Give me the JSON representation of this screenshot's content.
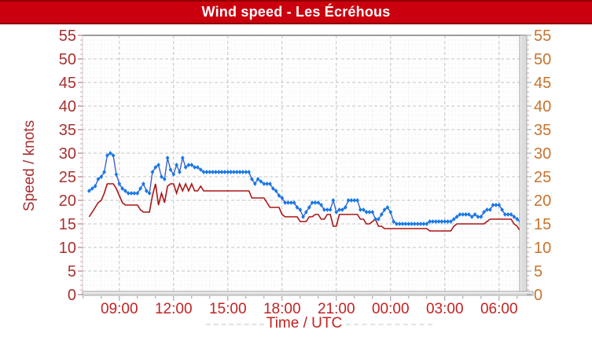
{
  "colors": {
    "title_bar_bg": "#cb000e",
    "title_bar_border": "#8e0000",
    "title_text": "#ffffff",
    "left_axis_text": "#a83030",
    "right_axis_text": "#c8732d",
    "x_axis_text": "#c22222",
    "grid_major": "#c3c3c3",
    "grid_minor": "#eeeeee",
    "grid_hour": "#e3e3e3",
    "axis_bar_fill": "#dcdcdc",
    "axis_bar_edge": "#a8a8a8",
    "tick_color": "#999999",
    "left_tick_minor": "#d8a0a0",
    "left_tick_major": "#b06060",
    "right_tick_minor": "#cc9999"
  },
  "chart_data": {
    "type": "line",
    "title": "Wind speed - Les Écréhous",
    "xlabel": "Time / UTC",
    "ylabel": "Speed / knots",
    "ylim": [
      0,
      55
    ],
    "y_tick_step": 5,
    "x_tick_labels": [
      "09:00",
      "12:00",
      "15:00",
      "18:00",
      "21:00",
      "00:00",
      "03:00",
      "06:00"
    ],
    "x_tick_hours": [
      9,
      12,
      15,
      18,
      21,
      24,
      27,
      30
    ],
    "x_start_time": "07:20",
    "x_interval_minutes": 10,
    "grid": true,
    "legend": "none",
    "series": [
      {
        "name": "series-blue-diamonds",
        "color": "#1778e8",
        "line_color": "#3d62c6",
        "marker": "diamond",
        "values": [
          22,
          22.5,
          23,
          24.5,
          25,
          26,
          29.5,
          30,
          29.5,
          25.5,
          23.5,
          22.5,
          22,
          21.5,
          21.5,
          21.5,
          21.5,
          22.5,
          23.5,
          22,
          21.5,
          26,
          27,
          27.5,
          25,
          24.5,
          29,
          26.5,
          25.5,
          27.5,
          26,
          29,
          27,
          27.5,
          27.5,
          27,
          27,
          26.5,
          26,
          26,
          26,
          26,
          26,
          26,
          26,
          26,
          26,
          26,
          26,
          26,
          26,
          26,
          26,
          26,
          24.5,
          23.5,
          24.5,
          24,
          23.5,
          23.5,
          23.5,
          22.5,
          22,
          21,
          20.5,
          19.5,
          19.5,
          19.5,
          19.5,
          18.5,
          18,
          16.5,
          17.5,
          18.5,
          19.5,
          19.5,
          19.5,
          19,
          18,
          18,
          18,
          20,
          17.5,
          18,
          18,
          18.5,
          20,
          20,
          20,
          20,
          18,
          18,
          17.5,
          17.5,
          17.5,
          16,
          16,
          17,
          18,
          18.5,
          17.5,
          15.5,
          15,
          15,
          15,
          15,
          15,
          15,
          15,
          15,
          15,
          15,
          15,
          15.5,
          15.5,
          15.5,
          15.5,
          15.5,
          15.5,
          15.5,
          15.5,
          16,
          16.5,
          17,
          17,
          17,
          17,
          16.5,
          17,
          16.5,
          16.5,
          17.5,
          18,
          18,
          19,
          19,
          19,
          18,
          17,
          17,
          17,
          16.5,
          16,
          15.5,
          14.5
        ]
      },
      {
        "name": "series-red-line",
        "color": "#aa1414",
        "line_color": "#aa1414",
        "marker": "none",
        "values": [
          16.5,
          17.5,
          18.5,
          19.5,
          20,
          21.5,
          23.5,
          23.5,
          23.5,
          22.5,
          21,
          19.5,
          19,
          19,
          19,
          19,
          19,
          18,
          17.5,
          17.5,
          17.5,
          21,
          23.5,
          19,
          21.5,
          19.5,
          23,
          23.5,
          23.5,
          21.5,
          23.5,
          22,
          23.5,
          22,
          23.5,
          22,
          22,
          23,
          22,
          22,
          22,
          22,
          22,
          22,
          22,
          22,
          22,
          22,
          22,
          22,
          22,
          22,
          22,
          22,
          20.5,
          20.5,
          20.5,
          20.5,
          20.5,
          19.5,
          18.5,
          18.5,
          18.5,
          18.5,
          17,
          16.5,
          16.5,
          16.5,
          16.5,
          16.5,
          15.5,
          15.5,
          15.5,
          16.5,
          16.5,
          17,
          17,
          16,
          16,
          17,
          17,
          14.5,
          14.5,
          17,
          17,
          17,
          17,
          17,
          17,
          17,
          16,
          16,
          15,
          15,
          15.5,
          16,
          14.5,
          14.5,
          14,
          14,
          14,
          14,
          14,
          14,
          14,
          14,
          14,
          14,
          14,
          14,
          14,
          14,
          14,
          13.5,
          13.5,
          13.5,
          13.5,
          13.5,
          13.5,
          13.5,
          13.5,
          14.5,
          15,
          15,
          15,
          15,
          15,
          15,
          15,
          15,
          15,
          15,
          15.5,
          16,
          16,
          16,
          16,
          16,
          16,
          16,
          16,
          15,
          14.5,
          13.5,
          12
        ]
      }
    ]
  }
}
